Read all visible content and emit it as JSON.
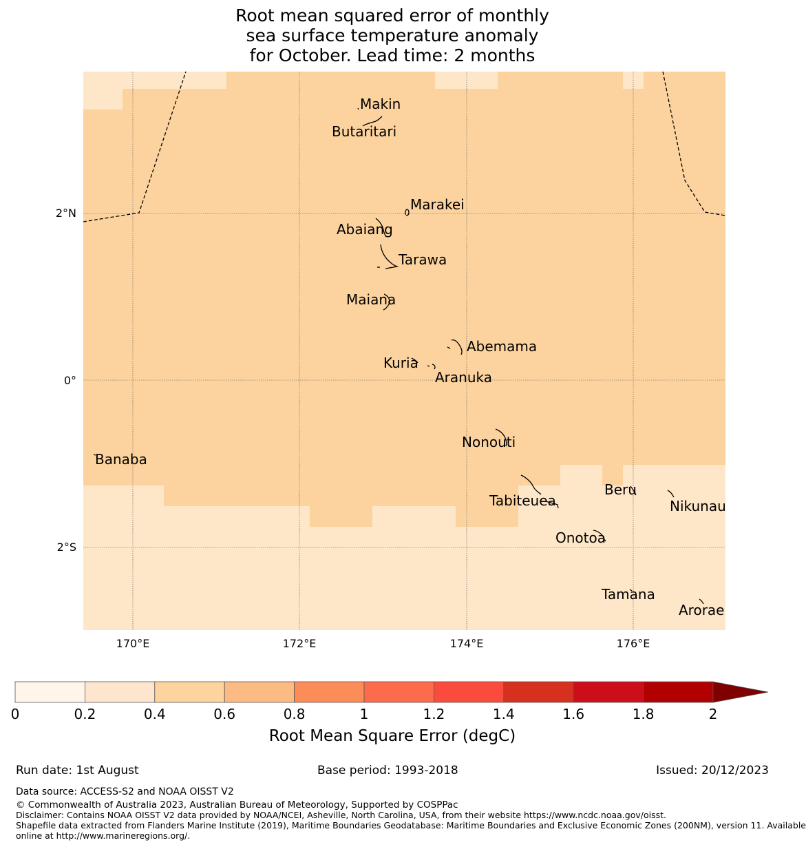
{
  "title": {
    "line1": "Root mean squared error of monthly",
    "line2": "sea surface temperature anomaly",
    "line3": "for October. Lead time: 2 months"
  },
  "map": {
    "lat_labels": [
      "2°N",
      "0°",
      "2°S"
    ],
    "lon_labels": [
      "170°E",
      "172°E",
      "174°E",
      "176°E"
    ],
    "islands": [
      {
        "name": "Makin"
      },
      {
        "name": "Butaritari"
      },
      {
        "name": "Marakei"
      },
      {
        "name": "Abaiang"
      },
      {
        "name": "Tarawa"
      },
      {
        "name": "Maiana"
      },
      {
        "name": "Abemama"
      },
      {
        "name": "Kuria"
      },
      {
        "name": "Aranuka"
      },
      {
        "name": "Nonouti"
      },
      {
        "name": "Banaba"
      },
      {
        "name": "Tabiteuea"
      },
      {
        "name": "Beru"
      },
      {
        "name": "Nikunau"
      },
      {
        "name": "Onotoa"
      },
      {
        "name": "Tamana"
      },
      {
        "name": "Arorae"
      }
    ]
  },
  "colorbar": {
    "ticks": [
      "0",
      "0.2",
      "0.4",
      "0.6",
      "0.8",
      "1",
      "1.2",
      "1.4",
      "1.6",
      "1.8",
      "2"
    ],
    "colors": [
      "#fff5eb",
      "#fee6ce",
      "#fdd49e",
      "#fdbb84",
      "#fc8d59",
      "#fc6b4b",
      "#fb4b3c",
      "#d7301f",
      "#cb0e1a",
      "#b20000",
      "#7f0000"
    ],
    "label": "Root Mean Square Error (degC)"
  },
  "footer": {
    "run_date": "Run date: 1st August",
    "base_period": "Base period: 1993-2018",
    "issued": "Issued: 20/12/2023",
    "data_source": "Data source: ACCESS-S2 and NOAA OISST V2",
    "copyright": "© Commonwealth of Australia 2023, Australian Bureau of Meteorology, Supported by COSPPac",
    "disclaimer": "Disclaimer: Contains NOAA OISST V2 data provided by NOAA/NCEI, Asheville, North Carolina, USA, from their website https://www.ncdc.noaa.gov/oisst.",
    "shapefile_1": "Shapefile data extracted from Flanders Marine Institute (2019), Maritime Boundaries Geodatabase: Maritime Boundaries and Exclusive Economic Zones (200NM), version 11. Available",
    "shapefile_2": "online at http://www.marineregions.org/."
  }
}
